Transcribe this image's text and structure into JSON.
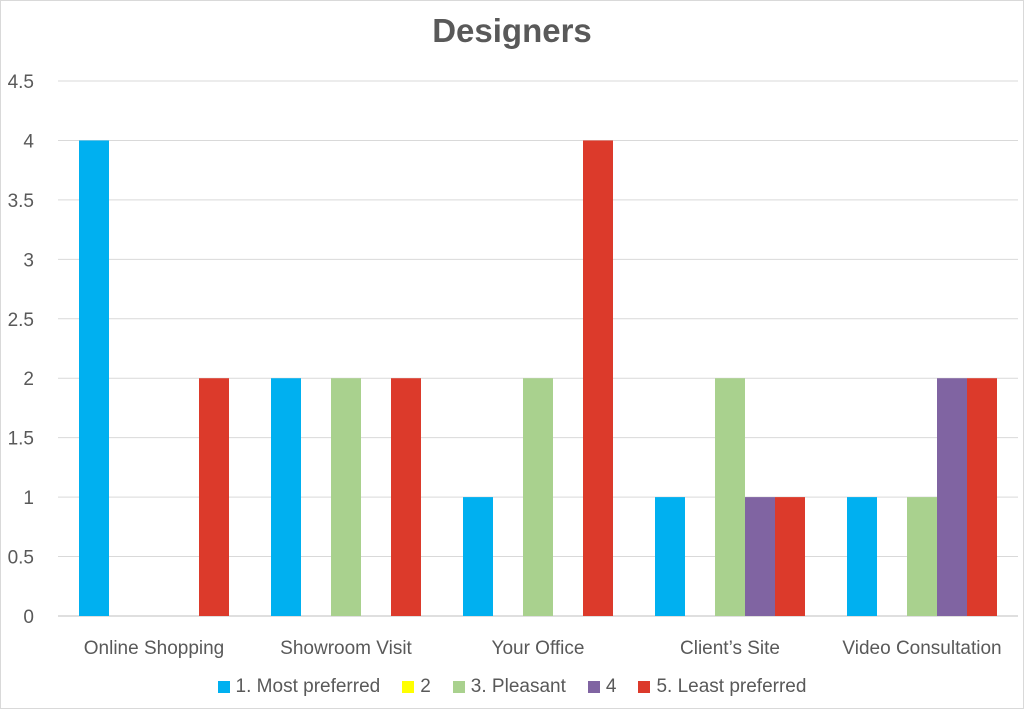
{
  "chart_data": {
    "type": "bar",
    "title": "Designers",
    "xlabel": "",
    "ylabel": "",
    "ylim": [
      0,
      4.5
    ],
    "yticks": [
      "0",
      "0.5",
      "1",
      "1.5",
      "2",
      "2.5",
      "3",
      "3.5",
      "4",
      "4.5"
    ],
    "grid": true,
    "legend_position": "bottom",
    "categories": [
      "Online Shopping",
      "Showroom Visit",
      "Your Office",
      "Client’s Site",
      "Video Consultation"
    ],
    "series": [
      {
        "name": "1. Most preferred",
        "color": "#00B0F0",
        "values": [
          4,
          2,
          1,
          1,
          1
        ]
      },
      {
        "name": "2",
        "color": "#FFFF00",
        "values": [
          0,
          0,
          0,
          0,
          0
        ]
      },
      {
        "name": "3. Pleasant",
        "color": "#A9D18E",
        "values": [
          0,
          2,
          2,
          2,
          1
        ]
      },
      {
        "name": "4",
        "color": "#8064A2",
        "values": [
          0,
          0,
          0,
          1,
          2
        ]
      },
      {
        "name": "5. Least preferred",
        "color": "#DC3A2B",
        "values": [
          2,
          2,
          4,
          1,
          2
        ]
      }
    ]
  }
}
